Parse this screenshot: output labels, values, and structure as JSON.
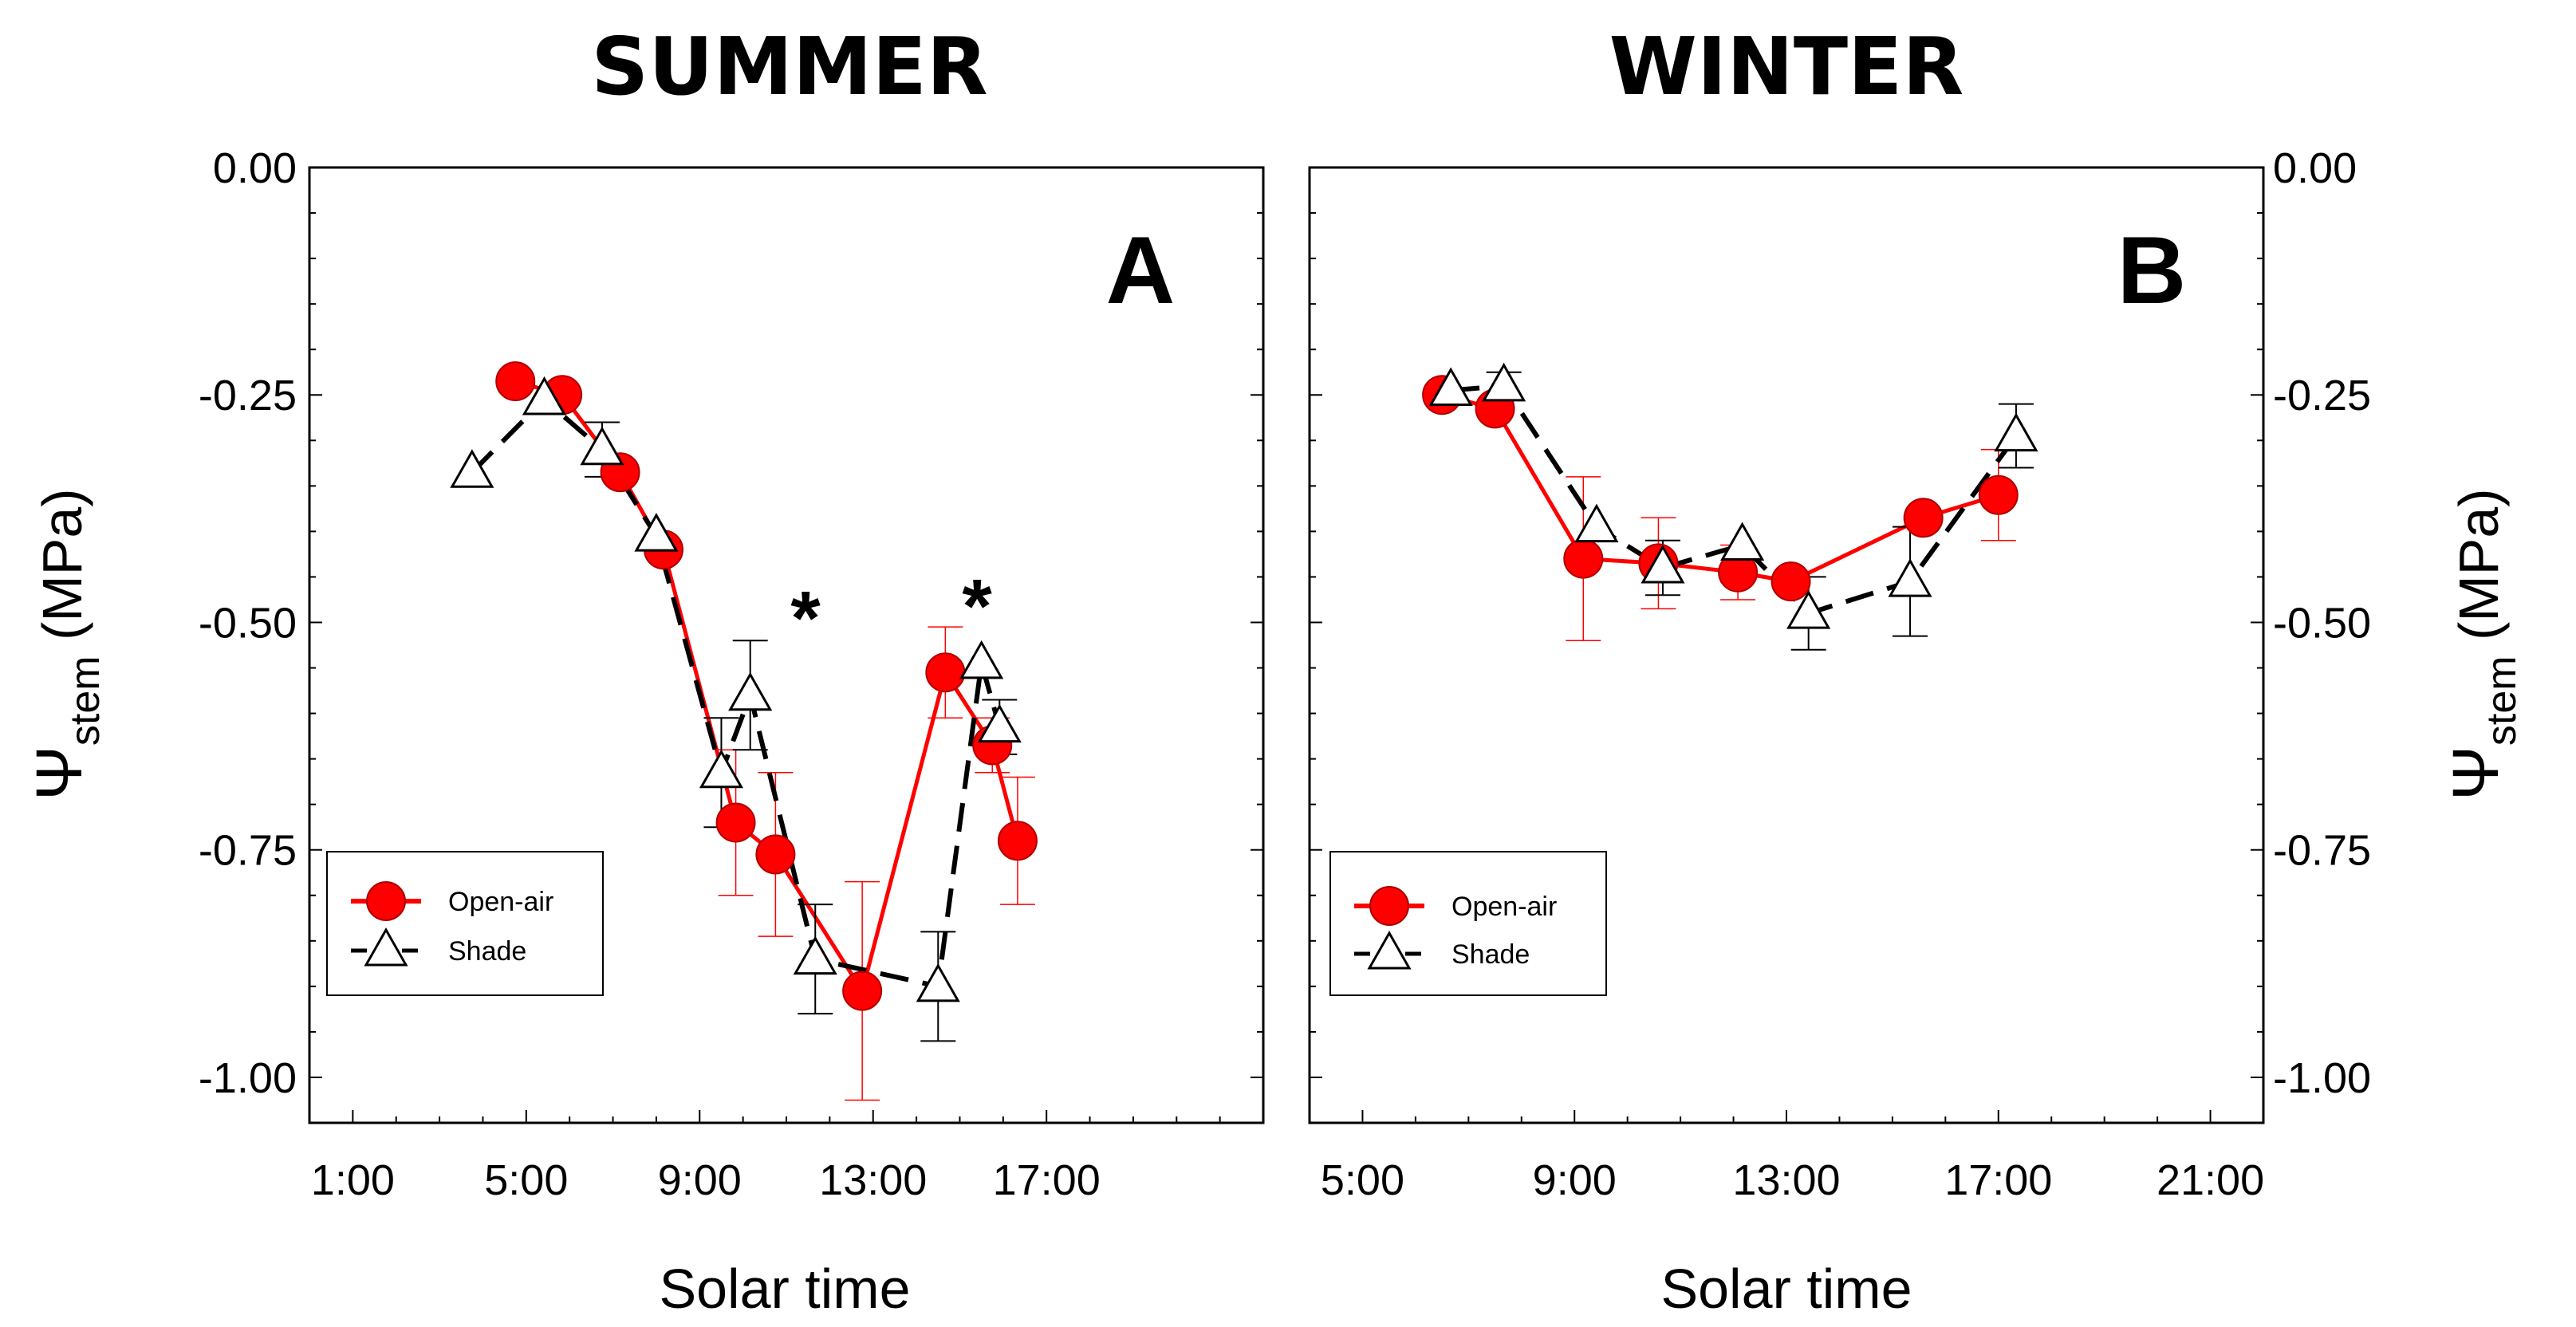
{
  "chart_data": [
    {
      "type": "line",
      "title": "SUMMER",
      "panel_label": "A",
      "xlabel": "Solar time",
      "ylabel": "Ψ",
      "ylabel_subscript": "stem",
      "ylabel_unit": " (MPa)",
      "xlim": [
        "0:00",
        "22:00"
      ],
      "ylim": [
        -1.05,
        0.0
      ],
      "xticks": [
        "1:00",
        "5:00",
        "9:00",
        "13:00",
        "17:00"
      ],
      "yticks": [
        "0.00",
        "-0.25",
        "-0.50",
        "-0.75",
        "-1.00"
      ],
      "grid": false,
      "legend_position": "bottom-left",
      "annotations": [
        {
          "text": "*",
          "x": "10:15"
        },
        {
          "text": "*",
          "x": "14:30"
        }
      ],
      "series": [
        {
          "name": "Open-air",
          "color": "#ff0000",
          "marker": "circle",
          "line": "solid",
          "x": [
            "4:45",
            "5:50",
            "7:10",
            "8:10",
            "9:50",
            "10:45",
            "12:45",
            "14:40",
            "15:45",
            "16:20"
          ],
          "y": [
            -0.235,
            -0.25,
            -0.335,
            -0.42,
            -0.72,
            -0.755,
            -0.905,
            -0.555,
            -0.635,
            -0.74
          ],
          "err": [
            0.0,
            0.0,
            0.0,
            0.0,
            0.08,
            0.09,
            0.12,
            0.05,
            0.03,
            0.07
          ]
        },
        {
          "name": "Shade",
          "color": "#000000",
          "marker": "triangle",
          "line": "dashed",
          "x": [
            "3:45",
            "5:25",
            "6:45",
            "8:00",
            "9:30",
            "10:10",
            "11:40",
            "14:30",
            "15:30",
            "15:55"
          ],
          "y": [
            -0.335,
            -0.255,
            -0.31,
            -0.405,
            -0.665,
            -0.58,
            -0.87,
            -0.9,
            -0.545,
            -0.615
          ],
          "err": [
            0.0,
            0.0,
            0.03,
            0.0,
            0.06,
            0.06,
            0.06,
            0.06,
            0.0,
            0.03
          ]
        }
      ]
    },
    {
      "type": "line",
      "title": "WINTER",
      "panel_label": "B",
      "xlabel": "Solar time",
      "ylabel": "Ψ",
      "ylabel_subscript": "stem",
      "ylabel_unit": " (MPa)",
      "xlim": [
        "4:00",
        "22:00"
      ],
      "ylim": [
        -1.05,
        0.0
      ],
      "xticks": [
        "5:00",
        "9:00",
        "13:00",
        "17:00",
        "21:00"
      ],
      "yticks": [
        "0.00",
        "-0.25",
        "-0.50",
        "-0.75",
        "-1.00"
      ],
      "grid": false,
      "legend_position": "bottom-left",
      "series": [
        {
          "name": "Open-air",
          "color": "#ff0000",
          "marker": "circle",
          "line": "solid",
          "x": [
            "6:30",
            "7:30",
            "9:10",
            "10:35",
            "12:05",
            "13:05",
            "15:35",
            "17:00"
          ],
          "y": [
            -0.25,
            -0.265,
            -0.43,
            -0.435,
            -0.445,
            -0.455,
            -0.385,
            -0.36
          ],
          "err": [
            0.0,
            0.0,
            0.09,
            0.05,
            0.03,
            0.0,
            0.0,
            0.05
          ]
        },
        {
          "name": "Shade",
          "color": "#000000",
          "marker": "triangle",
          "line": "dashed",
          "x": [
            "6:40",
            "7:40",
            "9:25",
            "10:40",
            "12:10",
            "13:25",
            "15:20",
            "17:20"
          ],
          "y": [
            -0.245,
            -0.24,
            -0.395,
            -0.44,
            -0.415,
            -0.49,
            -0.455,
            -0.295
          ],
          "err": [
            0.0,
            0.015,
            0.0,
            0.03,
            0.0,
            0.04,
            0.06,
            0.035
          ]
        }
      ]
    }
  ]
}
